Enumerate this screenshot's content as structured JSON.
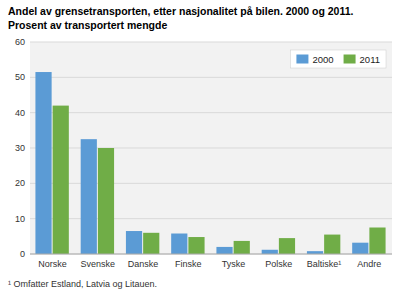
{
  "chart_data": {
    "type": "bar",
    "title": "Andel av grensetransporten, etter nasjonalitet på bilen. 2000 og 2011.",
    "subtitle": "Prosent av transportert mengde",
    "categories": [
      "Norske",
      "Svenske",
      "Danske",
      "Finske",
      "Tyske",
      "Polske",
      "Baltiske¹",
      "Andre"
    ],
    "series": [
      {
        "name": "2000",
        "color": "#5b9bd5",
        "values": [
          51.5,
          32.5,
          6.5,
          5.8,
          2.0,
          1.2,
          0.8,
          3.2
        ]
      },
      {
        "name": "2011",
        "color": "#70ad47",
        "values": [
          42.0,
          30.0,
          6.0,
          4.8,
          3.7,
          4.5,
          5.5,
          7.5
        ]
      }
    ],
    "ylim": [
      0,
      60
    ],
    "yticks": [
      0,
      10,
      20,
      30,
      40,
      50,
      60
    ],
    "grid": true,
    "legend": "upper right",
    "annotations": [
      "¹ Omfatter Estland, Latvia og Litauen."
    ]
  }
}
